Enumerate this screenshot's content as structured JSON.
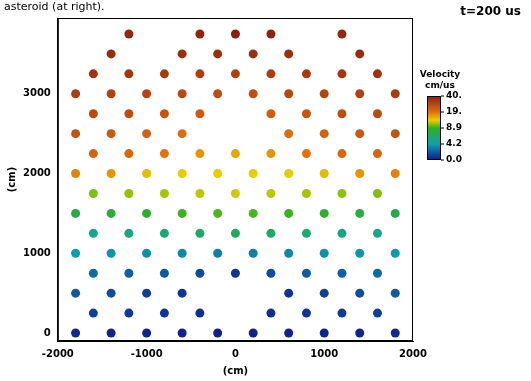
{
  "chart_data": {
    "type": "scatter",
    "title": "t=200 us",
    "annotation": "asteroid (at right).",
    "xlabel": "(cm)",
    "ylabel": "(cm)",
    "xlim": [
      -2000,
      2000
    ],
    "xticks": [
      -2000,
      -1000,
      0,
      1000,
      2000
    ],
    "ylim": [
      -100,
      3950
    ],
    "yticks": [
      0,
      1000,
      2000,
      3000
    ],
    "grid": false,
    "x": [
      -1800,
      -1400,
      -1000,
      -600,
      -200,
      200,
      600,
      1000,
      1400,
      1800,
      -1600,
      -1200,
      -800,
      -400,
      400,
      800,
      1200,
      1600,
      -1800,
      -1400,
      -1000,
      -600,
      600,
      1000,
      1400,
      1800,
      -1600,
      -1200,
      -800,
      -400,
      0,
      400,
      800,
      1200,
      1600,
      -1800,
      -1400,
      -1000,
      -600,
      -200,
      200,
      600,
      1000,
      1400,
      1800,
      -1600,
      -1200,
      -800,
      -400,
      0,
      400,
      800,
      1200,
      1600,
      -1800,
      -1400,
      -1000,
      -600,
      -200,
      200,
      600,
      1000,
      1400,
      1800,
      -1600,
      -1200,
      -800,
      -400,
      0,
      400,
      800,
      1200,
      1600,
      -1800,
      -1400,
      -1000,
      -600,
      -200,
      200,
      600,
      1000,
      1400,
      1800,
      -1600,
      -1200,
      -800,
      -400,
      0,
      400,
      800,
      1200,
      1600,
      -1800,
      -1400,
      -1000,
      -600,
      600,
      1000,
      1400,
      1800,
      -1600,
      -1200,
      -800,
      -400,
      400,
      800,
      1200,
      1600,
      -1800,
      -1400,
      -1000,
      -600,
      -200,
      200,
      600,
      1000,
      1400,
      1800,
      -1600,
      -1200,
      -800,
      -400,
      0,
      400,
      800,
      1200,
      1600,
      -1400,
      -600,
      -200,
      200,
      600,
      1400,
      -1200,
      -400,
      0,
      400,
      1200
    ],
    "y": [
      0,
      0,
      0,
      0,
      0,
      0,
      0,
      0,
      0,
      0,
      250,
      250,
      250,
      250,
      250,
      250,
      250,
      250,
      500,
      500,
      500,
      500,
      500,
      500,
      500,
      500,
      750,
      750,
      750,
      750,
      750,
      750,
      750,
      750,
      750,
      1000,
      1000,
      1000,
      1000,
      1000,
      1000,
      1000,
      1000,
      1000,
      1000,
      1250,
      1250,
      1250,
      1250,
      1250,
      1250,
      1250,
      1250,
      1250,
      1500,
      1500,
      1500,
      1500,
      1500,
      1500,
      1500,
      1500,
      1500,
      1500,
      1750,
      1750,
      1750,
      1750,
      1750,
      1750,
      1750,
      1750,
      1750,
      2000,
      2000,
      2000,
      2000,
      2000,
      2000,
      2000,
      2000,
      2000,
      2000,
      2250,
      2250,
      2250,
      2250,
      2250,
      2250,
      2250,
      2250,
      2250,
      2500,
      2500,
      2500,
      2500,
      2500,
      2500,
      2500,
      2500,
      2750,
      2750,
      2750,
      2750,
      2750,
      2750,
      2750,
      2750,
      3000,
      3000,
      3000,
      3000,
      3000,
      3000,
      3000,
      3000,
      3000,
      3000,
      3250,
      3250,
      3250,
      3250,
      3250,
      3250,
      3250,
      3250,
      3250,
      3500,
      3500,
      3500,
      3500,
      3500,
      3500,
      3750,
      3750,
      3750,
      3750,
      3750
    ],
    "velocity": [
      0.5,
      0.3,
      0.3,
      0.2,
      0.2,
      0.2,
      0.2,
      0.3,
      0.3,
      0.5,
      1.2,
      1.0,
      0.8,
      0.6,
      0.6,
      0.8,
      1.0,
      1.2,
      2.0,
      1.6,
      1.2,
      0.8,
      0.8,
      1.2,
      1.6,
      2.0,
      2.5,
      2.2,
      2.0,
      1.5,
      0.8,
      1.5,
      2.0,
      2.2,
      2.5,
      4.0,
      3.8,
      3.6,
      3.4,
      3.2,
      3.2,
      3.4,
      3.6,
      3.8,
      4.0,
      5.5,
      5.8,
      6.2,
      6.5,
      6.8,
      6.5,
      6.2,
      5.8,
      5.5,
      7.5,
      8.0,
      8.6,
      9.2,
      9.6,
      9.6,
      9.2,
      8.6,
      8.0,
      7.5,
      11,
      11.5,
      12,
      12.5,
      13,
      12.5,
      12,
      11.5,
      11,
      18,
      17,
      15,
      14,
      14,
      14,
      14,
      15,
      17,
      18,
      22,
      21,
      19,
      17,
      16,
      17,
      19,
      21,
      22,
      26,
      25,
      23,
      20,
      20,
      23,
      25,
      26,
      29,
      28,
      26,
      24,
      24,
      26,
      28,
      29,
      32,
      31,
      30,
      29,
      28,
      28,
      29,
      30,
      31,
      32,
      35,
      34,
      33,
      32,
      31,
      32,
      33,
      34,
      35,
      37,
      36,
      36,
      36,
      36,
      37,
      38,
      39,
      40,
      39,
      38
    ],
    "colorbar": {
      "title": [
        "Velocity",
        "cm/us"
      ],
      "range": [
        0,
        40
      ],
      "ticks": [
        {
          "value": 40,
          "label": "40."
        },
        {
          "value": 19,
          "label": "19."
        },
        8.9,
        4.2,
        {
          "value": 0,
          "label": "0.0"
        }
      ]
    }
  }
}
